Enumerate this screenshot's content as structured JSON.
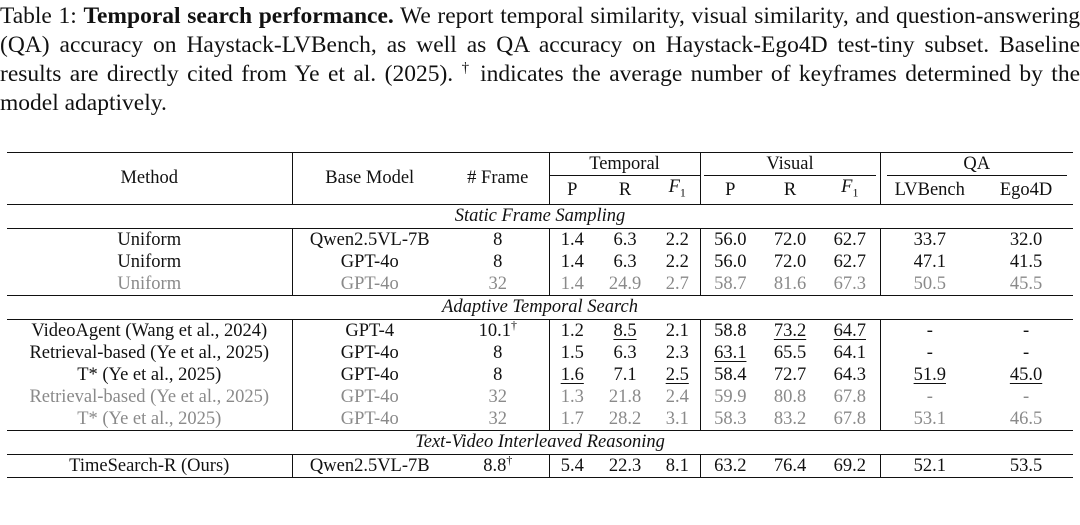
{
  "caption": {
    "label": "Table 1:",
    "title": "Temporal search performance.",
    "text_before_dagger": "We report temporal similarity, visual similarity, and question-answering (QA) accuracy on Haystack-LVBench, as well as QA accuracy on Haystack-Ego4D test-tiny subset. Baseline results are directly cited from Ye et al. (2025).",
    "dagger": "†",
    "text_after_dagger": "indicates the average number of keyframes determined by the model adaptively."
  },
  "headers": {
    "method": "Method",
    "base_model": "Base Model",
    "frame": "# Frame",
    "temporal": "Temporal",
    "visual": "Visual",
    "qa": "QA",
    "p": "P",
    "r": "R",
    "f": "F",
    "f_sub": "1",
    "lvbench": "LVBench",
    "ego4d": "Ego4D"
  },
  "sections": [
    {
      "title": "Static Frame Sampling",
      "rows": [
        {
          "method": "Uniform",
          "base": "Qwen2.5VL-7B",
          "frame": "8",
          "frame_sup": "",
          "tp": "1.4",
          "tr": "6.3",
          "tf": "2.2",
          "vp": "56.0",
          "vr": "72.0",
          "vf": "62.7",
          "lv": "33.7",
          "eg": "32.0"
        },
        {
          "method": "Uniform",
          "base": "GPT-4o",
          "frame": "8",
          "frame_sup": "",
          "tp": "1.4",
          "tr": "6.3",
          "tf": "2.2",
          "vp": "56.0",
          "vr": "72.0",
          "vf": "62.7",
          "lv": "47.1",
          "eg": "41.5"
        },
        {
          "method": "Uniform",
          "base": "GPT-4o",
          "frame": "32",
          "frame_sup": "",
          "tp": "1.4",
          "tr": "24.9",
          "tf": "2.7",
          "vp": "58.7",
          "vr": "81.6",
          "vf": "67.3",
          "lv": "50.5",
          "eg": "45.5"
        }
      ]
    },
    {
      "title": "Adaptive Temporal Search",
      "rows": [
        {
          "method": "VideoAgent (Wang et al., 2024)",
          "base": "GPT-4",
          "frame": "10.1",
          "frame_sup": "†",
          "tp": "1.2",
          "tr": "8.5",
          "tf": "2.1",
          "vp": "58.8",
          "vr": "73.2",
          "vf": "64.7",
          "lv": "-",
          "eg": "-"
        },
        {
          "method": "Retrieval-based (Ye et al., 2025)",
          "base": "GPT-4o",
          "frame": "8",
          "frame_sup": "",
          "tp": "1.5",
          "tr": "6.3",
          "tf": "2.3",
          "vp": "63.1",
          "vr": "65.5",
          "vf": "64.1",
          "lv": "-",
          "eg": "-"
        },
        {
          "method": "T* (Ye et al., 2025)",
          "base": "GPT-4o",
          "frame": "8",
          "frame_sup": "",
          "tp": "1.6",
          "tr": "7.1",
          "tf": "2.5",
          "vp": "58.4",
          "vr": "72.7",
          "vf": "64.3",
          "lv": "51.9",
          "eg": "45.0"
        },
        {
          "method": "Retrieval-based (Ye et al., 2025)",
          "base": "GPT-4o",
          "frame": "32",
          "frame_sup": "",
          "tp": "1.3",
          "tr": "21.8",
          "tf": "2.4",
          "vp": "59.9",
          "vr": "80.8",
          "vf": "67.8",
          "lv": "-",
          "eg": "-"
        },
        {
          "method": "T* (Ye et al., 2025)",
          "base": "GPT-4o",
          "frame": "32",
          "frame_sup": "",
          "tp": "1.7",
          "tr": "28.2",
          "tf": "3.1",
          "vp": "58.3",
          "vr": "83.2",
          "vf": "67.8",
          "lv": "53.1",
          "eg": "46.5"
        }
      ]
    },
    {
      "title": "Text-Video Interleaved Reasoning",
      "rows": [
        {
          "method": "TimeSearch-R (Ours)",
          "base": "Qwen2.5VL-7B",
          "frame": "8.8",
          "frame_sup": "†",
          "tp": "5.4",
          "tr": "22.3",
          "tf": "8.1",
          "vp": "63.2",
          "vr": "76.4",
          "vf": "69.2",
          "lv": "52.1",
          "eg": "53.5"
        }
      ]
    }
  ]
}
